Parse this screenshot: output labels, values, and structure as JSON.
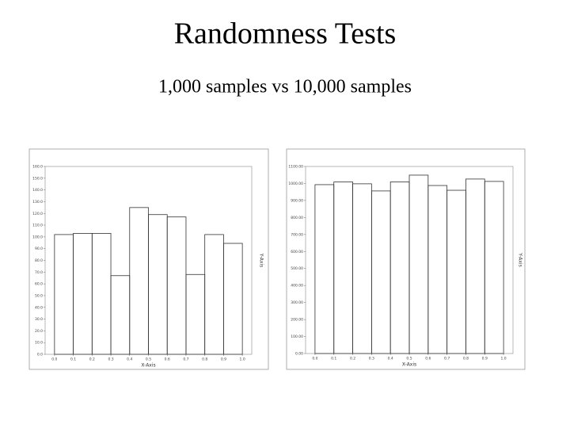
{
  "slide": {
    "title": "Randomness Tests",
    "subtitle": "1,000 samples vs 10,000 samples"
  },
  "chart_data": [
    {
      "type": "histogram",
      "x_label": "X-Axis",
      "y_label": "Y-Axis",
      "color": "#333333",
      "bins": [
        0,
        0.1,
        0.2,
        0.3,
        0.4,
        0.5,
        0.6,
        0.7,
        0.8,
        0.9,
        1
      ],
      "values": [
        102,
        103,
        103,
        67,
        125,
        119,
        117,
        68,
        102,
        94.5
      ],
      "xlim": [
        -0.05,
        1.05
      ],
      "ylim": [
        0,
        160
      ],
      "xticks": [
        {
          "value": 0,
          "label": "0.0"
        },
        0.1,
        0.2,
        0.3,
        0.4,
        0.5,
        0.6,
        0.7,
        0.8,
        0.9,
        {
          "value": 1,
          "label": "1.0"
        }
      ],
      "yticks": [
        {
          "value": 0,
          "label": "0.0"
        },
        {
          "value": 10,
          "label": "10.0"
        },
        {
          "value": 20,
          "label": "20.0"
        },
        {
          "value": 30,
          "label": "30.0"
        },
        {
          "value": 40,
          "label": "40.0"
        },
        {
          "value": 50,
          "label": "50.0"
        },
        {
          "value": 60,
          "label": "60.0"
        },
        {
          "value": 70,
          "label": "70.0"
        },
        {
          "value": 80,
          "label": "80.0"
        },
        {
          "value": 90,
          "label": "90.0"
        },
        {
          "value": 100,
          "label": "100.0"
        },
        {
          "value": 110,
          "label": "110.0"
        },
        {
          "value": 120,
          "label": "120.0"
        },
        {
          "value": 130,
          "label": "130.0"
        },
        {
          "value": 140,
          "label": "140.0"
        },
        {
          "value": 150,
          "label": "150.0"
        },
        {
          "value": 160,
          "label": "160.0"
        }
      ]
    },
    {
      "type": "histogram",
      "x_label": "X-Axis",
      "y_label": "Y-Axis",
      "color": "#333333",
      "bins": [
        0,
        0.1,
        0.2,
        0.3,
        0.4,
        0.5,
        0.6,
        0.7,
        0.8,
        0.9,
        1
      ],
      "values": [
        993,
        1009,
        998,
        956,
        1009,
        1049,
        988,
        960,
        1026,
        1012
      ],
      "xlim": [
        -0.05,
        1.05
      ],
      "ylim": [
        0,
        1100
      ],
      "xticks": [
        {
          "value": 0,
          "label": "0.0"
        },
        0.1,
        0.2,
        0.3,
        0.4,
        0.5,
        0.6,
        0.7,
        0.8,
        0.9,
        {
          "value": 1,
          "label": "1.0"
        }
      ],
      "yticks": [
        {
          "value": 0,
          "label": "0.00"
        },
        {
          "value": 100,
          "label": "100.00"
        },
        {
          "value": 200,
          "label": "200.00"
        },
        {
          "value": 300,
          "label": "300.00"
        },
        {
          "value": 400,
          "label": "400.00"
        },
        {
          "value": 500,
          "label": "500.00"
        },
        {
          "value": 600,
          "label": "600.00"
        },
        {
          "value": 700,
          "label": "700.00"
        },
        {
          "value": 800,
          "label": "800.00"
        },
        {
          "value": 900,
          "label": "900.00"
        },
        {
          "value": 1000,
          "label": "1000.00"
        },
        {
          "value": 1100,
          "label": "1100.00"
        }
      ]
    }
  ]
}
